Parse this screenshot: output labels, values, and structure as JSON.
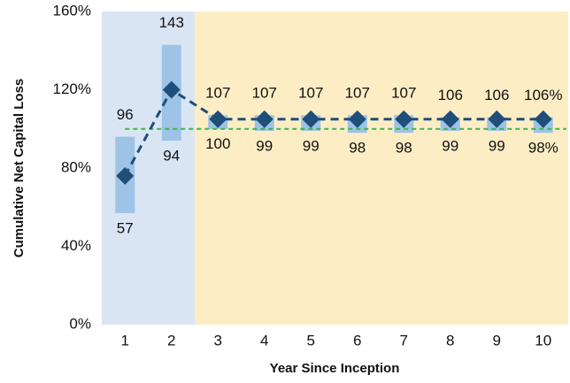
{
  "chart_data": {
    "type": "range-diamond",
    "y_label": "Cumulative Net Capital Loss",
    "x_label": "Year Since Inception",
    "categories": [
      "1",
      "2",
      "3",
      "4",
      "5",
      "6",
      "7",
      "8",
      "9",
      "10"
    ],
    "values": [
      76,
      120,
      105,
      105,
      105,
      105,
      105,
      105,
      105,
      105
    ],
    "color": "#1f4e79",
    "high": {
      "values": [
        96,
        143,
        107,
        107,
        107,
        107,
        107,
        106,
        106,
        106
      ],
      "value_labels": [
        "96",
        "143",
        "107",
        "107",
        "107",
        "107",
        "107",
        "106",
        "106",
        "106%"
      ]
    },
    "low": {
      "values": [
        57,
        94,
        100,
        99,
        99,
        98,
        98,
        99,
        99,
        98
      ],
      "value_labels": [
        "57",
        "94",
        "100",
        "99",
        "99",
        "98",
        "98",
        "99",
        "99",
        "98%"
      ]
    },
    "range_color": "#9dc3e6",
    "reference_line": 100,
    "reference_color": "#3cb44b",
    "ylim": [
      0,
      160
    ],
    "yticks": [
      {
        "value": 0,
        "label": "0%"
      },
      {
        "value": 40,
        "label": "40%"
      },
      {
        "value": 80,
        "label": "80%"
      },
      {
        "value": 120,
        "label": "120%"
      },
      {
        "value": 160,
        "label": "160%"
      }
    ]
  }
}
